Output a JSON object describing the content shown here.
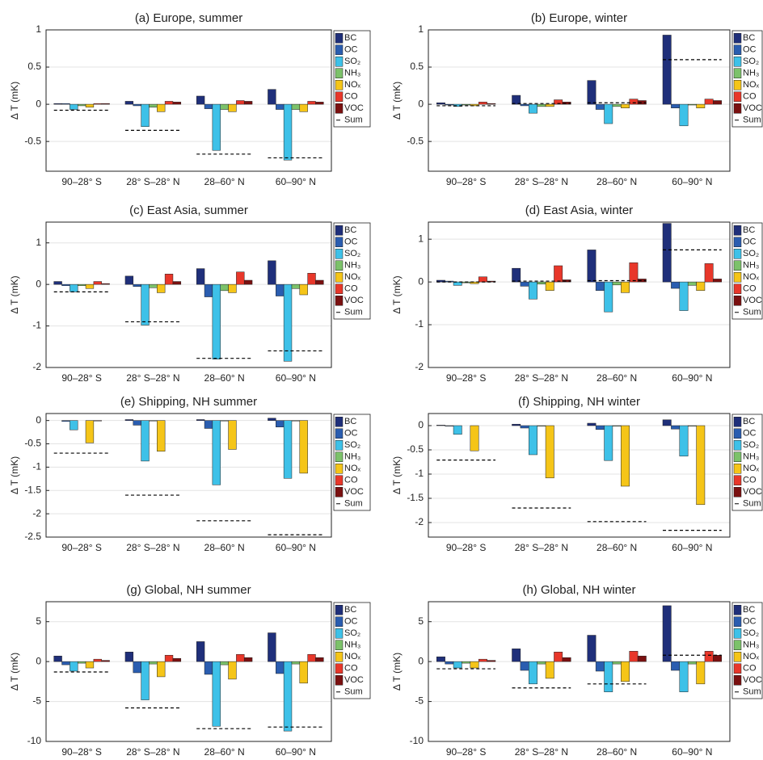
{
  "chart_data": [
    {
      "type": "bar",
      "title": "(a) Europe, summer",
      "ylabel": "Δ T (mK)",
      "categories": [
        "90–28° S",
        "28° S–28° N",
        "28–60° N",
        "60–90° N"
      ],
      "ylim": [
        -0.9,
        1
      ],
      "yticks": [
        -0.5,
        0,
        0.5,
        1
      ],
      "grid": true,
      "series": [
        {
          "name": "BC",
          "color": "#1f2f7a",
          "values": [
            0.01,
            0.04,
            0.11,
            0.2
          ]
        },
        {
          "name": "OC",
          "color": "#2a5db0",
          "values": [
            0.01,
            -0.02,
            -0.06,
            -0.07
          ]
        },
        {
          "name": "SO₂",
          "color": "#3ec1e8",
          "values": [
            -0.07,
            -0.3,
            -0.62,
            -0.75
          ]
        },
        {
          "name": "NH₃",
          "color": "#7cc26a",
          "values": [
            -0.02,
            -0.04,
            -0.07,
            -0.07
          ]
        },
        {
          "name": "NOₓ",
          "color": "#f5c518",
          "values": [
            -0.04,
            -0.1,
            -0.1,
            -0.1
          ]
        },
        {
          "name": "CO",
          "color": "#e8372a",
          "values": [
            0.01,
            0.04,
            0.05,
            0.04
          ]
        },
        {
          "name": "VOC",
          "color": "#7a1010",
          "values": [
            0.01,
            0.03,
            0.04,
            0.03
          ]
        },
        {
          "name": "Sum",
          "color": "#000000",
          "style": "dashed",
          "values": [
            -0.08,
            -0.35,
            -0.67,
            -0.72
          ]
        }
      ]
    },
    {
      "type": "bar",
      "title": "(b) Europe, winter",
      "ylabel": "Δ T (mK)",
      "categories": [
        "90–28° S",
        "28° S–28° N",
        "28–60° N",
        "60–90° N"
      ],
      "ylim": [
        -0.9,
        1
      ],
      "yticks": [
        -0.5,
        0,
        0.5,
        1
      ],
      "grid": true,
      "series": [
        {
          "name": "BC",
          "color": "#1f2f7a",
          "values": [
            0.02,
            0.12,
            0.32,
            0.93
          ]
        },
        {
          "name": "OC",
          "color": "#2a5db0",
          "values": [
            -0.01,
            -0.02,
            -0.07,
            -0.05
          ]
        },
        {
          "name": "SO₂",
          "color": "#3ec1e8",
          "values": [
            -0.03,
            -0.12,
            -0.26,
            -0.29
          ]
        },
        {
          "name": "NH₃",
          "color": "#7cc26a",
          "values": [
            -0.01,
            -0.03,
            -0.03,
            -0.01
          ]
        },
        {
          "name": "NOₓ",
          "color": "#f5c518",
          "values": [
            -0.02,
            -0.03,
            -0.05,
            -0.05
          ]
        },
        {
          "name": "CO",
          "color": "#e8372a",
          "values": [
            0.03,
            0.06,
            0.07,
            0.07
          ]
        },
        {
          "name": "VOC",
          "color": "#7a1010",
          "values": [
            0.01,
            0.03,
            0.05,
            0.05
          ]
        },
        {
          "name": "Sum",
          "color": "#000000",
          "style": "dashed",
          "values": [
            -0.02,
            0.01,
            0.02,
            0.6
          ]
        }
      ]
    },
    {
      "type": "bar",
      "title": "(c) East Asia, summer",
      "ylabel": "Δ T (mK)",
      "categories": [
        "90–28° S",
        "28° S–28° N",
        "28–60° N",
        "60–90° N"
      ],
      "ylim": [
        -2,
        1.5
      ],
      "yticks": [
        -2,
        -1,
        0,
        1
      ],
      "grid": true,
      "series": [
        {
          "name": "BC",
          "color": "#1f2f7a",
          "values": [
            0.07,
            0.2,
            0.38,
            0.57
          ]
        },
        {
          "name": "OC",
          "color": "#2a5db0",
          "values": [
            -0.03,
            -0.05,
            -0.3,
            -0.28
          ]
        },
        {
          "name": "SO₂",
          "color": "#3ec1e8",
          "values": [
            -0.18,
            -0.98,
            -1.8,
            -1.85
          ]
        },
        {
          "name": "NH₃",
          "color": "#7cc26a",
          "values": [
            -0.03,
            -0.08,
            -0.15,
            -0.1
          ]
        },
        {
          "name": "NOₓ",
          "color": "#f5c518",
          "values": [
            -0.1,
            -0.2,
            -0.2,
            -0.25
          ]
        },
        {
          "name": "CO",
          "color": "#e8372a",
          "values": [
            0.07,
            0.25,
            0.3,
            0.27
          ]
        },
        {
          "name": "VOC",
          "color": "#7a1010",
          "values": [
            0.02,
            0.07,
            0.1,
            0.1
          ]
        },
        {
          "name": "Sum",
          "color": "#000000",
          "style": "dashed",
          "values": [
            -0.18,
            -0.9,
            -1.78,
            -1.6
          ]
        }
      ]
    },
    {
      "type": "bar",
      "title": "(d) East Asia, winter",
      "ylabel": "Δ T (mK)",
      "categories": [
        "90–28° S",
        "28° S–28° N",
        "28–60° N",
        "60–90° N"
      ],
      "ylim": [
        -2,
        1.4
      ],
      "yticks": [
        -2,
        -1,
        0,
        1
      ],
      "grid": true,
      "series": [
        {
          "name": "BC",
          "color": "#1f2f7a",
          "values": [
            0.04,
            0.32,
            0.75,
            1.37
          ]
        },
        {
          "name": "OC",
          "color": "#2a5db0",
          "values": [
            0.02,
            -0.1,
            -0.2,
            -0.15
          ]
        },
        {
          "name": "SO₂",
          "color": "#3ec1e8",
          "values": [
            -0.08,
            -0.4,
            -0.7,
            -0.67
          ]
        },
        {
          "name": "NH₃",
          "color": "#7cc26a",
          "values": [
            -0.02,
            -0.05,
            -0.07,
            -0.08
          ]
        },
        {
          "name": "NOₓ",
          "color": "#f5c518",
          "values": [
            -0.04,
            -0.2,
            -0.25,
            -0.2
          ]
        },
        {
          "name": "CO",
          "color": "#e8372a",
          "values": [
            0.12,
            0.38,
            0.45,
            0.43
          ]
        },
        {
          "name": "VOC",
          "color": "#7a1010",
          "values": [
            0.02,
            0.05,
            0.07,
            0.07
          ]
        },
        {
          "name": "Sum",
          "color": "#000000",
          "style": "dashed",
          "values": [
            0,
            0.02,
            0.03,
            0.75
          ]
        }
      ]
    },
    {
      "type": "bar",
      "title": "(e) Shipping, NH summer",
      "ylabel": "Δ T (mK)",
      "categories": [
        "90–28° S",
        "28° S–28° N",
        "28–60° N",
        "60–90° N"
      ],
      "ylim": [
        -2.5,
        0.15
      ],
      "yticks": [
        -2.5,
        -2,
        -1.5,
        -1,
        -0.5,
        0
      ],
      "grid": true,
      "series": [
        {
          "name": "BC",
          "color": "#1f2f7a",
          "values": [
            0,
            0.02,
            0.02,
            0.05
          ]
        },
        {
          "name": "OC",
          "color": "#2a5db0",
          "values": [
            -0.02,
            -0.1,
            -0.17,
            -0.14
          ]
        },
        {
          "name": "SO₂",
          "color": "#3ec1e8",
          "values": [
            -0.2,
            -0.87,
            -1.38,
            -1.24
          ]
        },
        {
          "name": "NH₃",
          "color": "#7cc26a",
          "values": [
            0,
            -0.01,
            -0.01,
            -0.01
          ]
        },
        {
          "name": "NOₓ",
          "color": "#f5c518",
          "values": [
            -0.48,
            -0.66,
            -0.62,
            -1.13
          ]
        },
        {
          "name": "CO",
          "color": "#e8372a",
          "values": [
            -0.01,
            0,
            0,
            0
          ]
        },
        {
          "name": "VOC",
          "color": "#7a1010",
          "values": [
            0,
            0,
            0,
            0
          ]
        },
        {
          "name": "Sum",
          "color": "#000000",
          "style": "dashed",
          "values": [
            -0.7,
            -1.6,
            -2.15,
            -2.45
          ]
        }
      ]
    },
    {
      "type": "bar",
      "title": "(f) Shipping, NH winter",
      "ylabel": "Δ T (mK)",
      "categories": [
        "90–28° S",
        "28° S–28° N",
        "28–60° N",
        "60–90° N"
      ],
      "ylim": [
        -2.3,
        0.25
      ],
      "yticks": [
        -2,
        -1.5,
        -1,
        -0.5,
        0
      ],
      "grid": true,
      "series": [
        {
          "name": "BC",
          "color": "#1f2f7a",
          "values": [
            0.01,
            0.03,
            0.05,
            0.12
          ]
        },
        {
          "name": "OC",
          "color": "#2a5db0",
          "values": [
            -0.01,
            -0.05,
            -0.08,
            -0.07
          ]
        },
        {
          "name": "SO₂",
          "color": "#3ec1e8",
          "values": [
            -0.18,
            -0.6,
            -0.72,
            -0.63
          ]
        },
        {
          "name": "NH₃",
          "color": "#7cc26a",
          "values": [
            0,
            -0.01,
            -0.01,
            -0.01
          ]
        },
        {
          "name": "NOₓ",
          "color": "#f5c518",
          "values": [
            -0.52,
            -1.08,
            -1.25,
            -1.63
          ]
        },
        {
          "name": "CO",
          "color": "#e8372a",
          "values": [
            0,
            0,
            0,
            0
          ]
        },
        {
          "name": "VOC",
          "color": "#7a1010",
          "values": [
            0,
            0,
            0,
            0
          ]
        },
        {
          "name": "Sum",
          "color": "#000000",
          "style": "dashed",
          "values": [
            -0.71,
            -1.7,
            -1.98,
            -2.16
          ]
        }
      ]
    },
    {
      "type": "bar",
      "title": "(g) Global, NH summer",
      "ylabel": "Δ T (mK)",
      "categories": [
        "90–28° S",
        "28° S–28° N",
        "28–60° N",
        "60–90° N"
      ],
      "ylim": [
        -10,
        7.5
      ],
      "yticks": [
        -10,
        -5,
        0,
        5
      ],
      "grid": true,
      "series": [
        {
          "name": "BC",
          "color": "#1f2f7a",
          "values": [
            0.7,
            1.2,
            2.5,
            3.6
          ]
        },
        {
          "name": "OC",
          "color": "#2a5db0",
          "values": [
            -0.4,
            -1.4,
            -1.6,
            -1.5
          ]
        },
        {
          "name": "SO₂",
          "color": "#3ec1e8",
          "values": [
            -1.2,
            -4.8,
            -8.1,
            -8.7
          ]
        },
        {
          "name": "NH₃",
          "color": "#7cc26a",
          "values": [
            -0.2,
            -0.3,
            -0.4,
            -0.3
          ]
        },
        {
          "name": "NOₓ",
          "color": "#f5c518",
          "values": [
            -0.8,
            -1.9,
            -2.2,
            -2.7
          ]
        },
        {
          "name": "CO",
          "color": "#e8372a",
          "values": [
            0.3,
            0.8,
            0.9,
            0.9
          ]
        },
        {
          "name": "VOC",
          "color": "#7a1010",
          "values": [
            0.15,
            0.4,
            0.5,
            0.5
          ]
        },
        {
          "name": "Sum",
          "color": "#000000",
          "style": "dashed",
          "values": [
            -1.3,
            -5.8,
            -8.4,
            -8.2
          ]
        }
      ]
    },
    {
      "type": "bar",
      "title": "(h) Global, NH winter",
      "ylabel": "Δ T (mK)",
      "categories": [
        "90–28° S",
        "28° S–28° N",
        "28–60° N",
        "60–90° N"
      ],
      "ylim": [
        -10,
        7.5
      ],
      "yticks": [
        -10,
        -5,
        0,
        5
      ],
      "grid": true,
      "series": [
        {
          "name": "BC",
          "color": "#1f2f7a",
          "values": [
            0.6,
            1.6,
            3.3,
            7.0
          ]
        },
        {
          "name": "OC",
          "color": "#2a5db0",
          "values": [
            -0.3,
            -1.1,
            -1.2,
            -1.1
          ]
        },
        {
          "name": "SO₂",
          "color": "#3ec1e8",
          "values": [
            -0.8,
            -2.8,
            -3.8,
            -3.8
          ]
        },
        {
          "name": "NH₃",
          "color": "#7cc26a",
          "values": [
            -0.2,
            -0.3,
            -0.3,
            -0.3
          ]
        },
        {
          "name": "NOₓ",
          "color": "#f5c518",
          "values": [
            -0.8,
            -2.1,
            -2.5,
            -2.8
          ]
        },
        {
          "name": "CO",
          "color": "#e8372a",
          "values": [
            0.3,
            1.2,
            1.3,
            1.3
          ]
        },
        {
          "name": "VOC",
          "color": "#7a1010",
          "values": [
            0.15,
            0.5,
            0.7,
            0.8
          ]
        },
        {
          "name": "Sum",
          "color": "#000000",
          "style": "dashed",
          "values": [
            -0.9,
            -3.3,
            -2.8,
            0.8
          ]
        }
      ]
    }
  ]
}
